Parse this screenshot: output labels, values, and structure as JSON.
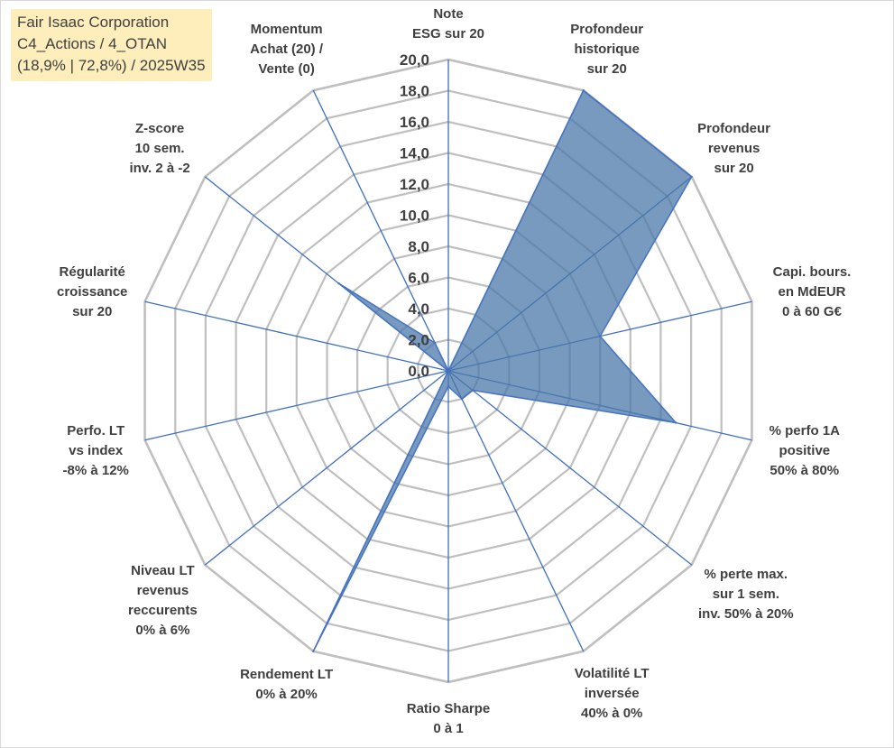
{
  "info": {
    "line1": "Fair Isaac Corporation",
    "line2": "C4_Actions / 4_OTAN",
    "line3": "(18,9% | 72,8%) / 2025W35"
  },
  "colors": {
    "fill": "#4a78a8",
    "stroke": "#4472c4",
    "grid": "#bfbfbf",
    "spoke": "#3f6fbf",
    "text": "#404040"
  },
  "chart_data": {
    "type": "radar",
    "rmin": 0,
    "rmax": 20,
    "grid": true,
    "ticks": [
      "0,0",
      "2,0",
      "4,0",
      "6,0",
      "8,0",
      "10,0",
      "12,0",
      "14,0",
      "16,0",
      "18,0",
      "20,0"
    ],
    "axes": [
      [
        "Note",
        "ESG sur 20"
      ],
      [
        "Profondeur",
        "historique",
        "sur 20"
      ],
      [
        "Profondeur",
        "revenus",
        "sur 20"
      ],
      [
        "Capi. bours.",
        "en MdEUR",
        "0 à 60 G€"
      ],
      [
        "% perfo 1A",
        "positive",
        "50% à 80%"
      ],
      [
        "% perte max.",
        "sur 1 sem.",
        "inv. 50% à 20%"
      ],
      [
        "Volatilité LT",
        "inversée",
        "40% à 0%"
      ],
      [
        "Ratio Sharpe",
        "0 à 1"
      ],
      [
        "Rendement LT",
        "0% à 20%"
      ],
      [
        "Niveau LT",
        "revenus",
        "reccurents",
        "0% à 6%"
      ],
      [
        "Perfo. LT",
        "vs index",
        "-8% à 12%"
      ],
      [
        "Régularité",
        "croissance",
        "sur 20"
      ],
      [
        "Z-score",
        "10 sem.",
        "inv. 2 à -2"
      ],
      [
        "Momentum",
        "Achat (20) /",
        "Vente (0)"
      ]
    ],
    "series": [
      {
        "values": [
          0,
          20,
          20,
          10,
          15,
          2,
          2,
          1,
          20,
          0,
          0,
          0,
          9,
          2
        ]
      }
    ]
  }
}
